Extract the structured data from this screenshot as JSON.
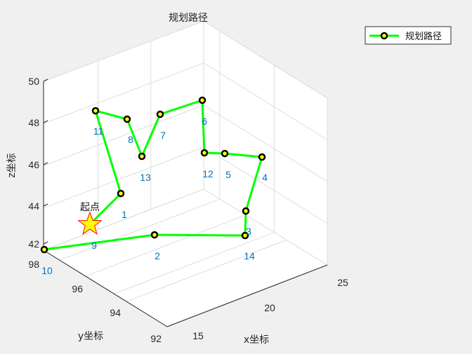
{
  "chart_data": {
    "type": "line3d",
    "title": "规划路径",
    "xlabel": "x坐标",
    "ylabel": "y坐标",
    "zlabel": "z坐标",
    "x_ticks": [
      "15",
      "20",
      "25"
    ],
    "y_ticks": [
      "92",
      "94",
      "96",
      "98"
    ],
    "z_ticks": [
      "42",
      "44",
      "46",
      "48",
      "50"
    ],
    "legend": {
      "label": "规划路径",
      "position": "top-right"
    },
    "series": [
      {
        "name": "规划路径",
        "line_color": "#00ff00",
        "marker_edge": "#000000",
        "marker_face": "#ffff00",
        "point_ids": [
          "9",
          "1",
          "11",
          "8",
          "13",
          "7",
          "6",
          "12",
          "5",
          "4",
          "3",
          "14",
          "2",
          "10"
        ]
      }
    ],
    "start_point": {
      "label": "起点",
      "marker": "star",
      "face": "#ffff00",
      "edge": "#ff0000"
    },
    "grid": true
  }
}
